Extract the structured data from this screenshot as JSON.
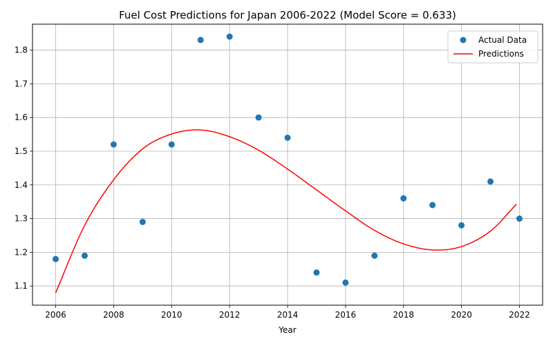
{
  "chart_data": {
    "type": "scatter",
    "title": "Fuel Cost Predictions for Japan 2006-2022 (Model Score = 0.633)",
    "xlabel": "Year",
    "ylabel": "",
    "xlim": [
      2005.2,
      2022.8
    ],
    "ylim": [
      1.043,
      1.877
    ],
    "xticks": [
      2006,
      2008,
      2010,
      2012,
      2014,
      2016,
      2018,
      2020,
      2022
    ],
    "yticks": [
      1.1,
      1.2,
      1.3,
      1.4,
      1.5,
      1.6,
      1.7,
      1.8
    ],
    "grid": true,
    "legend_position": "top-right",
    "series": [
      {
        "name": "Actual Data",
        "kind": "scatter",
        "color": "#1f77b4",
        "x": [
          2006,
          2007,
          2008,
          2009,
          2010,
          2011,
          2012,
          2013,
          2014,
          2015,
          2016,
          2017,
          2018,
          2019,
          2020,
          2021,
          2022
        ],
        "y": [
          1.18,
          1.19,
          1.52,
          1.29,
          1.52,
          1.83,
          1.84,
          1.6,
          1.54,
          1.14,
          1.11,
          1.19,
          1.36,
          1.34,
          1.28,
          1.41,
          1.3
        ]
      },
      {
        "name": "Predictions",
        "kind": "line",
        "color": "#ff0000",
        "x": [
          2006,
          2007,
          2008,
          2009,
          2010,
          2011,
          2012,
          2013,
          2014,
          2015,
          2016,
          2017,
          2018,
          2019,
          2020,
          2021,
          2021.9
        ],
        "y": [
          1.08,
          1.28,
          1.415,
          1.507,
          1.551,
          1.563,
          1.543,
          1.503,
          1.447,
          1.385,
          1.323,
          1.265,
          1.225,
          1.207,
          1.217,
          1.263,
          1.343
        ]
      }
    ]
  }
}
